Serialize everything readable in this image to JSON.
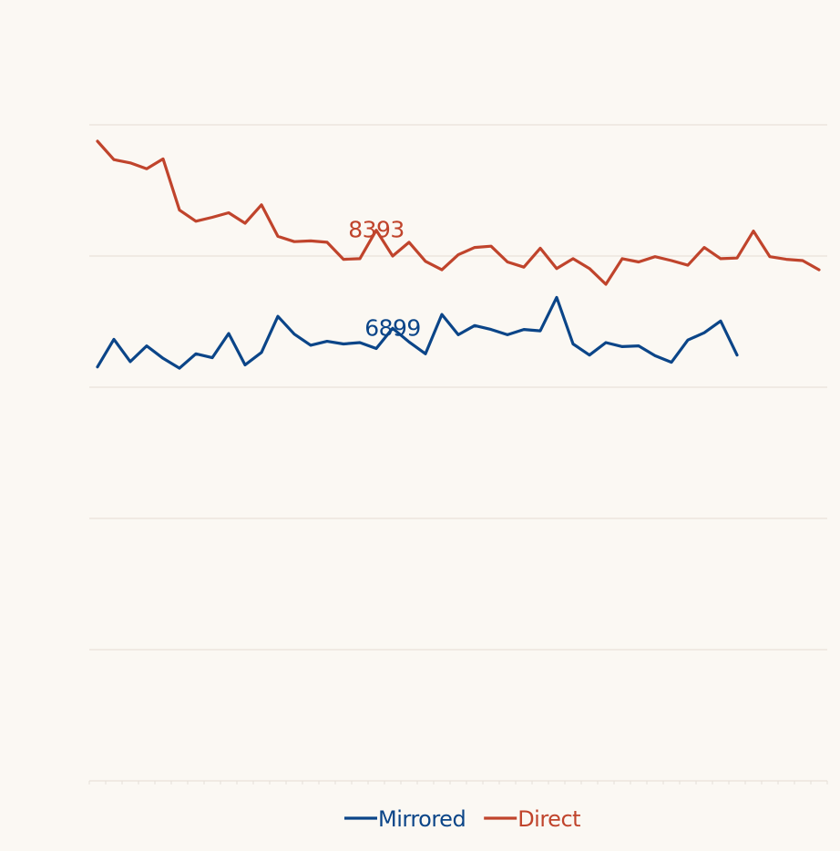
{
  "chart_data": {
    "type": "line",
    "title": "",
    "xlabel": "",
    "ylabel": "",
    "ylim": [
      0,
      10000
    ],
    "grid": true,
    "y_gridlines": [
      0,
      2000,
      4000,
      6000,
      8000,
      10000
    ],
    "legend_position": "bottom-center",
    "series": [
      {
        "name": "Mirrored",
        "color": "#0b4588",
        "values": [
          6310,
          6730,
          6390,
          6630,
          6440,
          6290,
          6510,
          6450,
          6820,
          6340,
          6530,
          7080,
          6810,
          6640,
          6700,
          6660,
          6680,
          6590,
          6899,
          6690,
          6510,
          7110,
          6800,
          6940,
          6880,
          6800,
          6880,
          6860,
          7370,
          6660,
          6490,
          6680,
          6620,
          6630,
          6480,
          6380,
          6720,
          6830,
          7010,
          6490
        ],
        "peak_label": "6899",
        "peak_index": 18
      },
      {
        "name": "Direct",
        "color": "#c0442c",
        "values": [
          9750,
          9470,
          9420,
          9330,
          9480,
          8700,
          8530,
          8590,
          8660,
          8500,
          8780,
          8300,
          8220,
          8230,
          8210,
          7950,
          7960,
          8393,
          8000,
          8210,
          7920,
          7790,
          8020,
          8130,
          8150,
          7910,
          7830,
          8120,
          7810,
          7960,
          7810,
          7570,
          7960,
          7910,
          7990,
          7930,
          7860,
          8130,
          7960,
          7970,
          8380,
          7990,
          7950,
          7930,
          7790
        ],
        "peak_label": "8393",
        "peak_index": 17
      }
    ],
    "x_tick_count": 46
  }
}
